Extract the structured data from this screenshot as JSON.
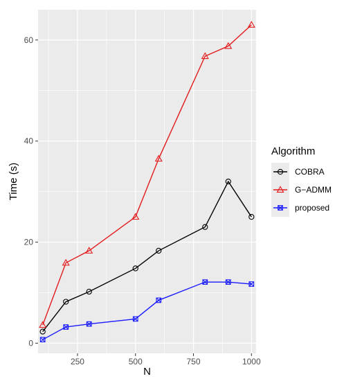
{
  "chart_data": {
    "type": "line",
    "xlabel": "N",
    "ylabel": "Time (s)",
    "xlim": [
      80,
      1020
    ],
    "ylim": [
      -2,
      66
    ],
    "x_ticks": [
      250,
      500,
      750,
      1000
    ],
    "x_tick_labels": [
      "250",
      "500",
      "750",
      "1000"
    ],
    "y_ticks": [
      0,
      20,
      40,
      60
    ],
    "y_tick_labels": [
      "0",
      "20",
      "40",
      "60"
    ],
    "grid": true,
    "legend": {
      "title": "Algorithm",
      "position": "right"
    },
    "series": [
      {
        "name": "COBRA",
        "color": "#000000",
        "marker": "circle",
        "x": [
          100,
          200,
          300,
          500,
          600,
          800,
          900,
          1000
        ],
        "values": [
          2.3,
          8.2,
          10.2,
          14.8,
          18.3,
          23.0,
          32.0,
          25.0
        ]
      },
      {
        "name": "G−ADMM",
        "color": "#e41a1c",
        "marker": "triangle",
        "x": [
          100,
          200,
          300,
          500,
          600,
          800,
          900,
          1000
        ],
        "values": [
          3.6,
          15.9,
          18.3,
          25.0,
          36.5,
          56.8,
          58.8,
          63.0
        ]
      },
      {
        "name": "proposed",
        "color": "#1a1aff",
        "marker": "square-cross",
        "x": [
          100,
          200,
          300,
          500,
          600,
          800,
          900,
          1000
        ],
        "values": [
          0.7,
          3.2,
          3.8,
          4.8,
          8.5,
          12.1,
          12.1,
          11.7
        ]
      }
    ]
  }
}
